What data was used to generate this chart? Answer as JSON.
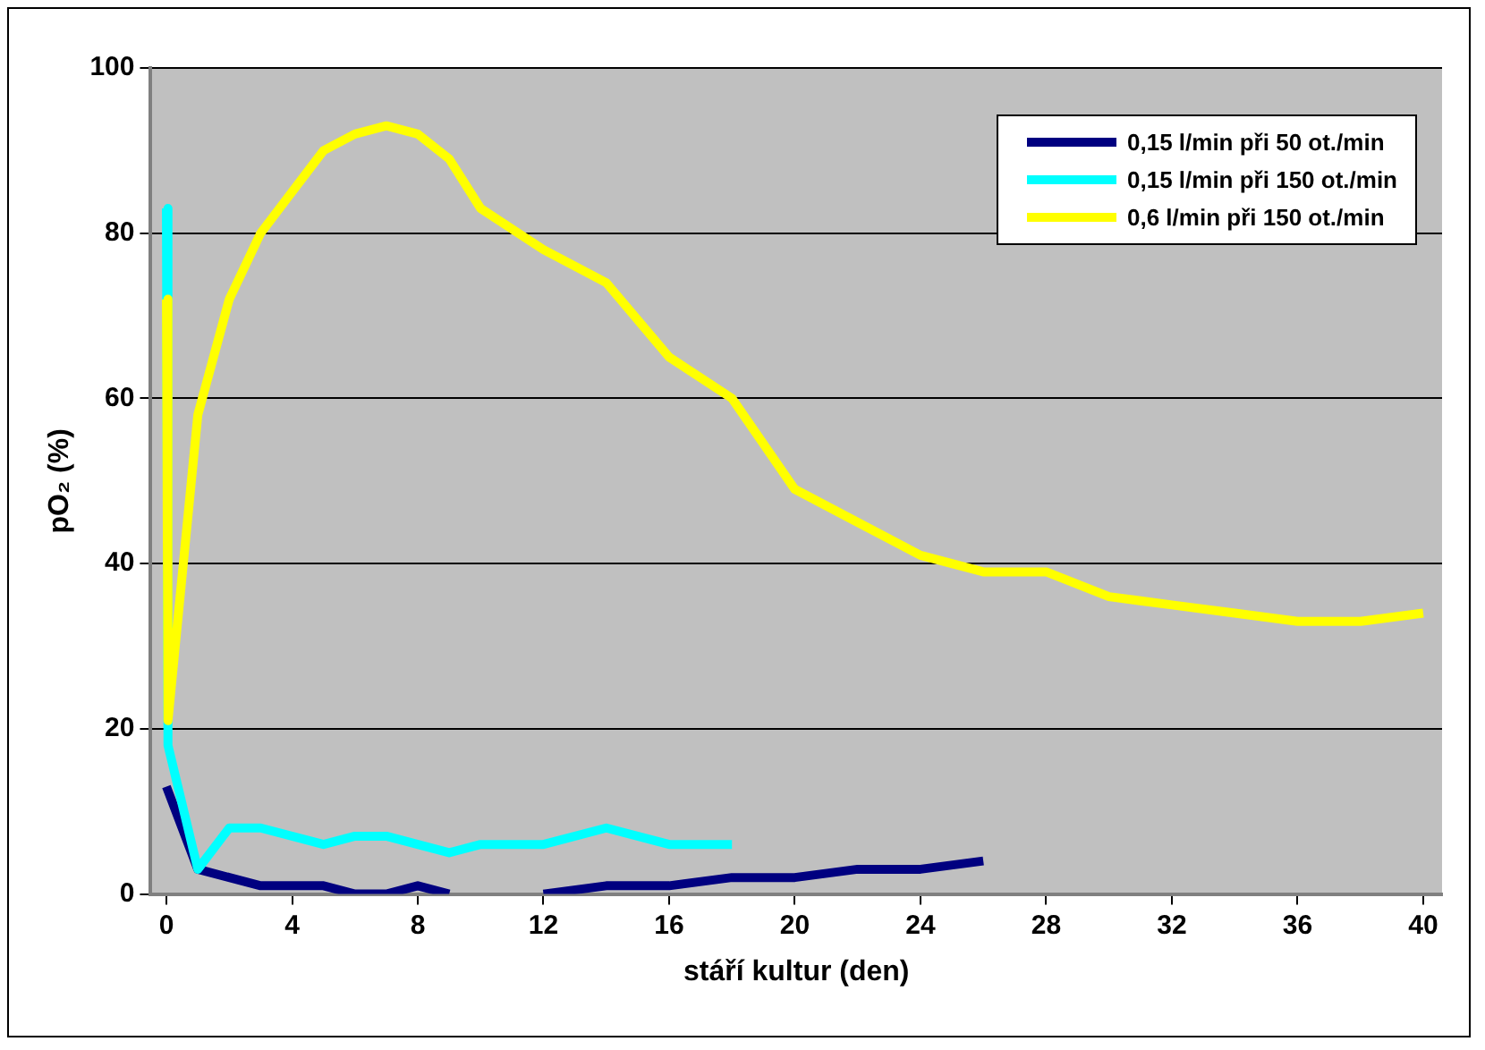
{
  "chart_data": {
    "type": "line",
    "xlabel": "stáří kultur (den)",
    "ylabel": "pO₂ (%)",
    "xlim": [
      -0.5,
      40.6
    ],
    "xticks": [
      0,
      4,
      8,
      12,
      16,
      20,
      24,
      28,
      32,
      36,
      40
    ],
    "ylim": [
      0,
      100
    ],
    "yticks": [
      0,
      20,
      40,
      60,
      80,
      100
    ],
    "grid": "y",
    "legend": "top right",
    "marker": "none",
    "line_style": "solid",
    "series": [
      {
        "name": "0,15 l/min při 50 ot./min",
        "color": "#000080",
        "x": [
          0,
          1,
          2,
          3,
          5,
          6,
          7,
          8,
          9,
          10.5,
          12,
          14,
          16,
          18,
          20,
          22,
          24,
          26
        ],
        "values": [
          13,
          3,
          2,
          1,
          1,
          0,
          0,
          1,
          0,
          null,
          0,
          1,
          1,
          2,
          2,
          3,
          3,
          4
        ]
      },
      {
        "name": "0,15 l/min při 150 ot./min",
        "color": "#00ffff",
        "x": [
          0,
          0.05,
          1,
          2,
          3,
          5,
          6,
          7,
          9,
          10,
          12,
          14,
          16,
          18
        ],
        "values": [
          83,
          18,
          3,
          8,
          8,
          6,
          7,
          7,
          5,
          6,
          6,
          8,
          6,
          6
        ]
      },
      {
        "name": "0,6 l/min při 150 ot./min",
        "color": "#ffff00",
        "x": [
          0,
          0.05,
          1,
          2,
          3,
          4,
          5,
          6,
          7,
          8,
          9,
          10,
          12,
          14,
          16,
          18,
          20,
          22,
          24,
          26,
          28,
          30,
          32,
          34,
          36,
          38,
          40
        ],
        "values": [
          72,
          21,
          58,
          72,
          80,
          85,
          90,
          92,
          93,
          92,
          89,
          83,
          78,
          74,
          65,
          60,
          49,
          45,
          41,
          39,
          39,
          36,
          35,
          34,
          33,
          33,
          34
        ]
      }
    ]
  }
}
